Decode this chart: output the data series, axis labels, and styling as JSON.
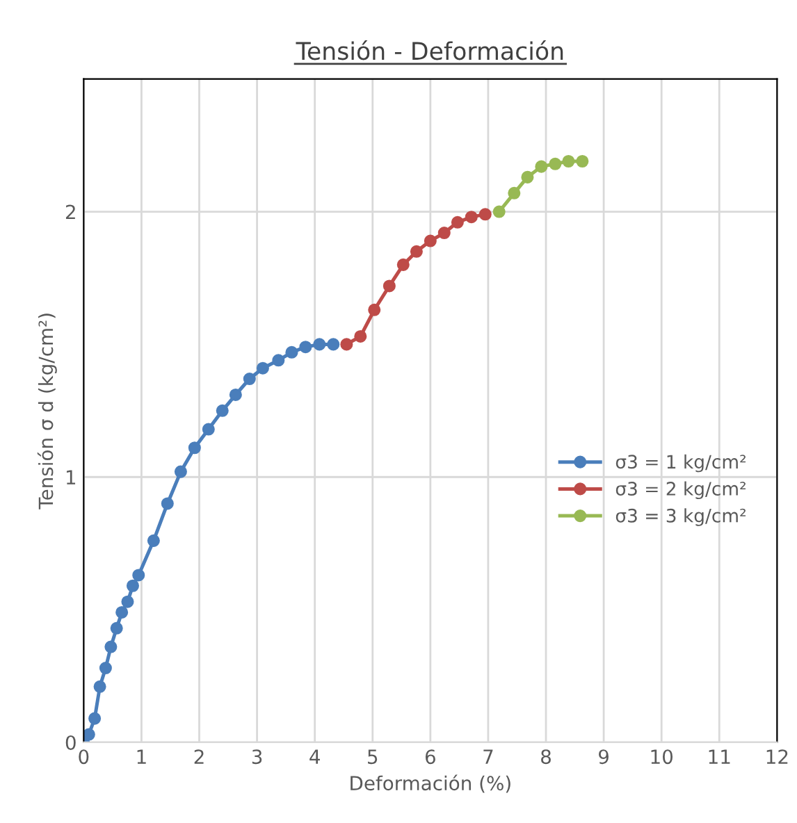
{
  "chart_data": {
    "type": "line",
    "title": "Tensión - Deformación",
    "xlabel": "Deformación (%)",
    "ylabel": "Tensión σ d (kg/cm²)",
    "xlim": [
      0,
      12
    ],
    "xticks": [
      0,
      1,
      2,
      3,
      4,
      5,
      6,
      7,
      8,
      9,
      10,
      11,
      12
    ],
    "ylim": [
      0,
      2.5
    ],
    "yticks": [
      0,
      1,
      2
    ],
    "grid": true,
    "legend": "right",
    "marker": "circle",
    "line_style": "solid",
    "series": [
      {
        "name": "σ3 = 1 kg/cm²",
        "color": "#4a7ebb",
        "x": [
          0,
          0.09,
          0.19,
          0.28,
          0.38,
          0.47,
          0.57,
          0.66,
          0.76,
          0.85,
          0.95,
          1.21,
          1.45,
          1.68,
          1.92,
          2.16,
          2.4,
          2.63,
          2.87,
          3.1,
          3.37,
          3.6,
          3.84,
          4.08,
          4.32
        ],
        "values": [
          0,
          0.03,
          0.09,
          0.21,
          0.28,
          0.36,
          0.43,
          0.49,
          0.53,
          0.59,
          0.63,
          0.76,
          0.9,
          1.02,
          1.11,
          1.18,
          1.25,
          1.31,
          1.37,
          1.41,
          1.44,
          1.47,
          1.49,
          1.5,
          1.5
        ]
      },
      {
        "name": "σ3 = 2 kg/cm²",
        "color": "#be4b48",
        "x": [
          4.55,
          4.79,
          5.03,
          5.29,
          5.53,
          5.76,
          6.0,
          6.24,
          6.47,
          6.71,
          6.95
        ],
        "values": [
          1.5,
          1.53,
          1.63,
          1.72,
          1.8,
          1.85,
          1.89,
          1.92,
          1.96,
          1.98,
          1.99
        ]
      },
      {
        "name": "σ3 = 3 kg/cm²",
        "color": "#98b954",
        "x": [
          7.19,
          7.45,
          7.68,
          7.92,
          8.16,
          8.39,
          8.63
        ],
        "values": [
          2.0,
          2.07,
          2.13,
          2.17,
          2.18,
          2.19,
          2.19
        ]
      }
    ]
  }
}
